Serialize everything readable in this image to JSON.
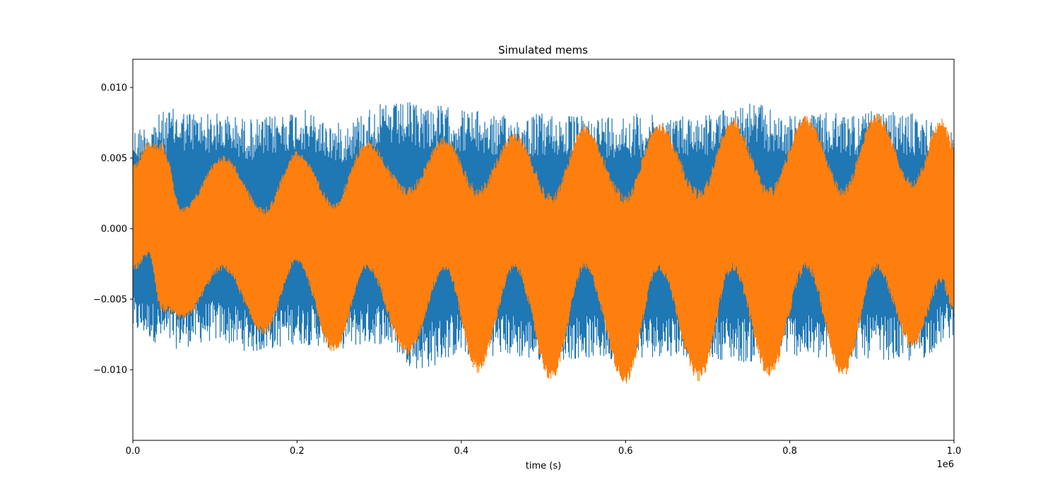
{
  "chart_data": {
    "type": "line",
    "title": "Simulated mems",
    "xlabel": "time (s)",
    "ylabel": "",
    "x_offset_label": "1e6",
    "xlim": [
      0,
      1000000
    ],
    "ylim": [
      -0.015,
      0.012
    ],
    "x_ticks": [
      0,
      200000,
      400000,
      600000,
      800000,
      1000000
    ],
    "x_tick_labels": [
      "0.0",
      "0.2",
      "0.4",
      "0.6",
      "0.8",
      "1.0"
    ],
    "y_ticks": [
      -0.01,
      -0.005,
      0.0,
      0.005,
      0.01
    ],
    "y_tick_labels": [
      "−0.010",
      "−0.005",
      "0.000",
      "0.005",
      "0.010"
    ],
    "grid": false,
    "legend": "none",
    "series": [
      {
        "color": "#1f77b4",
        "envelope": {
          "x": [
            0,
            50000,
            100000,
            150000,
            200000,
            250000,
            300000,
            350000,
            400000,
            450000,
            500000,
            550000,
            600000,
            650000,
            700000,
            750000,
            800000,
            850000,
            900000,
            950000,
            1000000
          ],
          "upper": [
            0.0072,
            0.0085,
            0.0082,
            0.0078,
            0.0085,
            0.0075,
            0.0088,
            0.009,
            0.0085,
            0.008,
            0.0082,
            0.008,
            0.0082,
            0.008,
            0.0082,
            0.009,
            0.008,
            0.0082,
            0.0083,
            0.0082,
            0.007
          ],
          "lower": [
            -0.0075,
            -0.0085,
            -0.008,
            -0.0088,
            -0.0082,
            -0.0085,
            -0.0082,
            -0.01,
            -0.009,
            -0.009,
            -0.0095,
            -0.0092,
            -0.0095,
            -0.009,
            -0.0092,
            -0.0095,
            -0.009,
            -0.0095,
            -0.0092,
            -0.0095,
            -0.0078
          ]
        }
      },
      {
        "color": "#ff7f0e",
        "envelope": {
          "x": [
            0,
            20000,
            35000,
            60000,
            110000,
            160000,
            200000,
            245000,
            285000,
            335000,
            380000,
            420000,
            465000,
            510000,
            550000,
            600000,
            640000,
            690000,
            730000,
            775000,
            820000,
            865000,
            905000,
            950000,
            985000,
            1000000
          ],
          "upper": [
            0.0045,
            0.0062,
            0.0062,
            0.0015,
            0.0052,
            0.0015,
            0.0055,
            0.002,
            0.0062,
            0.003,
            0.0065,
            0.003,
            0.0068,
            0.0025,
            0.0073,
            0.0025,
            0.0075,
            0.0028,
            0.0078,
            0.003,
            0.008,
            0.003,
            0.0082,
            0.0035,
            0.0078,
            0.006
          ],
          "lower": [
            -0.003,
            -0.002,
            -0.006,
            -0.0065,
            -0.003,
            -0.0075,
            -0.0025,
            -0.0088,
            -0.003,
            -0.009,
            -0.003,
            -0.0102,
            -0.003,
            -0.0108,
            -0.003,
            -0.011,
            -0.003,
            -0.0108,
            -0.003,
            -0.0105,
            -0.003,
            -0.0105,
            -0.003,
            -0.0085,
            -0.004,
            -0.0062
          ]
        }
      }
    ]
  }
}
